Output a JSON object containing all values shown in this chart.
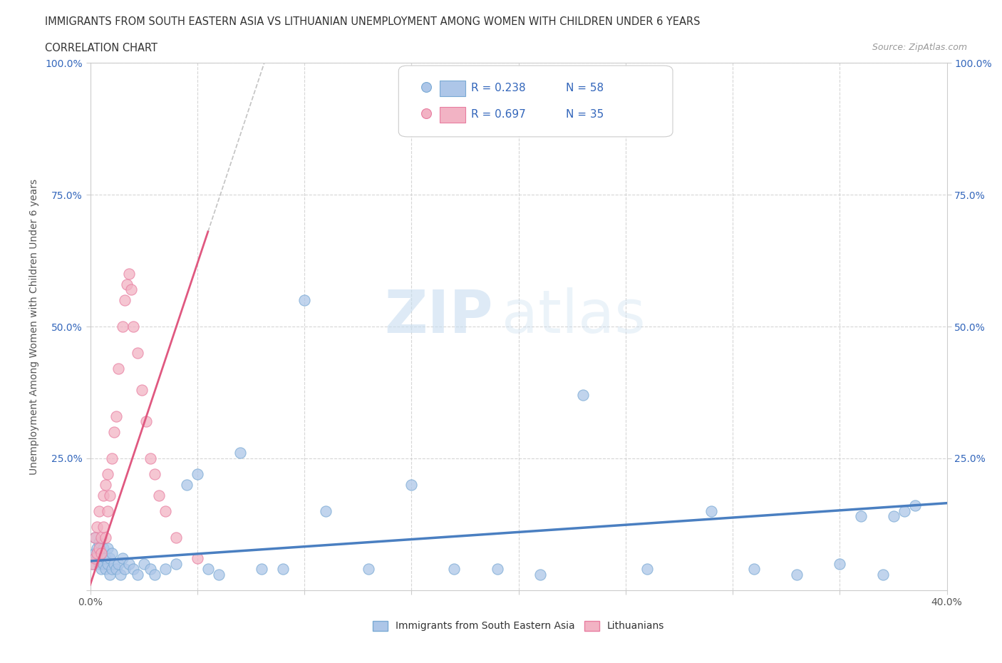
{
  "title_line1": "IMMIGRANTS FROM SOUTH EASTERN ASIA VS LITHUANIAN UNEMPLOYMENT AMONG WOMEN WITH CHILDREN UNDER 6 YEARS",
  "title_line2": "CORRELATION CHART",
  "source_text": "Source: ZipAtlas.com",
  "watermark_zip": "ZIP",
  "watermark_atlas": "atlas",
  "xlabel": "Immigrants from South Eastern Asia",
  "ylabel": "Unemployment Among Women with Children Under 6 years",
  "xlim": [
    0.0,
    0.4
  ],
  "ylim": [
    0.0,
    1.0
  ],
  "blue_R": "0.238",
  "blue_N": "58",
  "pink_R": "0.697",
  "pink_N": "35",
  "blue_color": "#adc6e8",
  "pink_color": "#f2b3c4",
  "blue_edge_color": "#7aaad4",
  "pink_edge_color": "#e87da0",
  "blue_line_color": "#4a7fc1",
  "pink_line_color": "#e05880",
  "blue_scatter_x": [
    0.001,
    0.002,
    0.002,
    0.003,
    0.003,
    0.004,
    0.004,
    0.005,
    0.005,
    0.006,
    0.006,
    0.007,
    0.007,
    0.008,
    0.008,
    0.009,
    0.009,
    0.01,
    0.01,
    0.011,
    0.012,
    0.013,
    0.014,
    0.015,
    0.016,
    0.018,
    0.02,
    0.022,
    0.025,
    0.028,
    0.03,
    0.035,
    0.04,
    0.045,
    0.05,
    0.055,
    0.06,
    0.07,
    0.08,
    0.09,
    0.1,
    0.11,
    0.13,
    0.15,
    0.17,
    0.19,
    0.21,
    0.23,
    0.26,
    0.29,
    0.31,
    0.33,
    0.35,
    0.36,
    0.37,
    0.375,
    0.38,
    0.385
  ],
  "blue_scatter_y": [
    0.05,
    0.07,
    0.1,
    0.06,
    0.08,
    0.05,
    0.09,
    0.04,
    0.07,
    0.05,
    0.08,
    0.04,
    0.06,
    0.05,
    0.08,
    0.03,
    0.06,
    0.04,
    0.07,
    0.05,
    0.04,
    0.05,
    0.03,
    0.06,
    0.04,
    0.05,
    0.04,
    0.03,
    0.05,
    0.04,
    0.03,
    0.04,
    0.05,
    0.2,
    0.22,
    0.04,
    0.03,
    0.26,
    0.04,
    0.04,
    0.55,
    0.15,
    0.04,
    0.2,
    0.04,
    0.04,
    0.03,
    0.37,
    0.04,
    0.15,
    0.04,
    0.03,
    0.05,
    0.14,
    0.03,
    0.14,
    0.15,
    0.16
  ],
  "pink_scatter_x": [
    0.001,
    0.002,
    0.002,
    0.003,
    0.003,
    0.004,
    0.004,
    0.005,
    0.005,
    0.006,
    0.006,
    0.007,
    0.007,
    0.008,
    0.008,
    0.009,
    0.01,
    0.011,
    0.012,
    0.013,
    0.015,
    0.016,
    0.017,
    0.018,
    0.019,
    0.02,
    0.022,
    0.024,
    0.026,
    0.028,
    0.03,
    0.032,
    0.035,
    0.04,
    0.05
  ],
  "pink_scatter_y": [
    0.05,
    0.06,
    0.1,
    0.07,
    0.12,
    0.08,
    0.15,
    0.07,
    0.1,
    0.12,
    0.18,
    0.1,
    0.2,
    0.15,
    0.22,
    0.18,
    0.25,
    0.3,
    0.33,
    0.42,
    0.5,
    0.55,
    0.58,
    0.6,
    0.57,
    0.5,
    0.45,
    0.38,
    0.32,
    0.25,
    0.22,
    0.18,
    0.15,
    0.1,
    0.06
  ],
  "background_color": "#ffffff",
  "grid_color": "#cccccc",
  "ytick_label_color": "#3366bb",
  "xtick_label_color": "#555555"
}
